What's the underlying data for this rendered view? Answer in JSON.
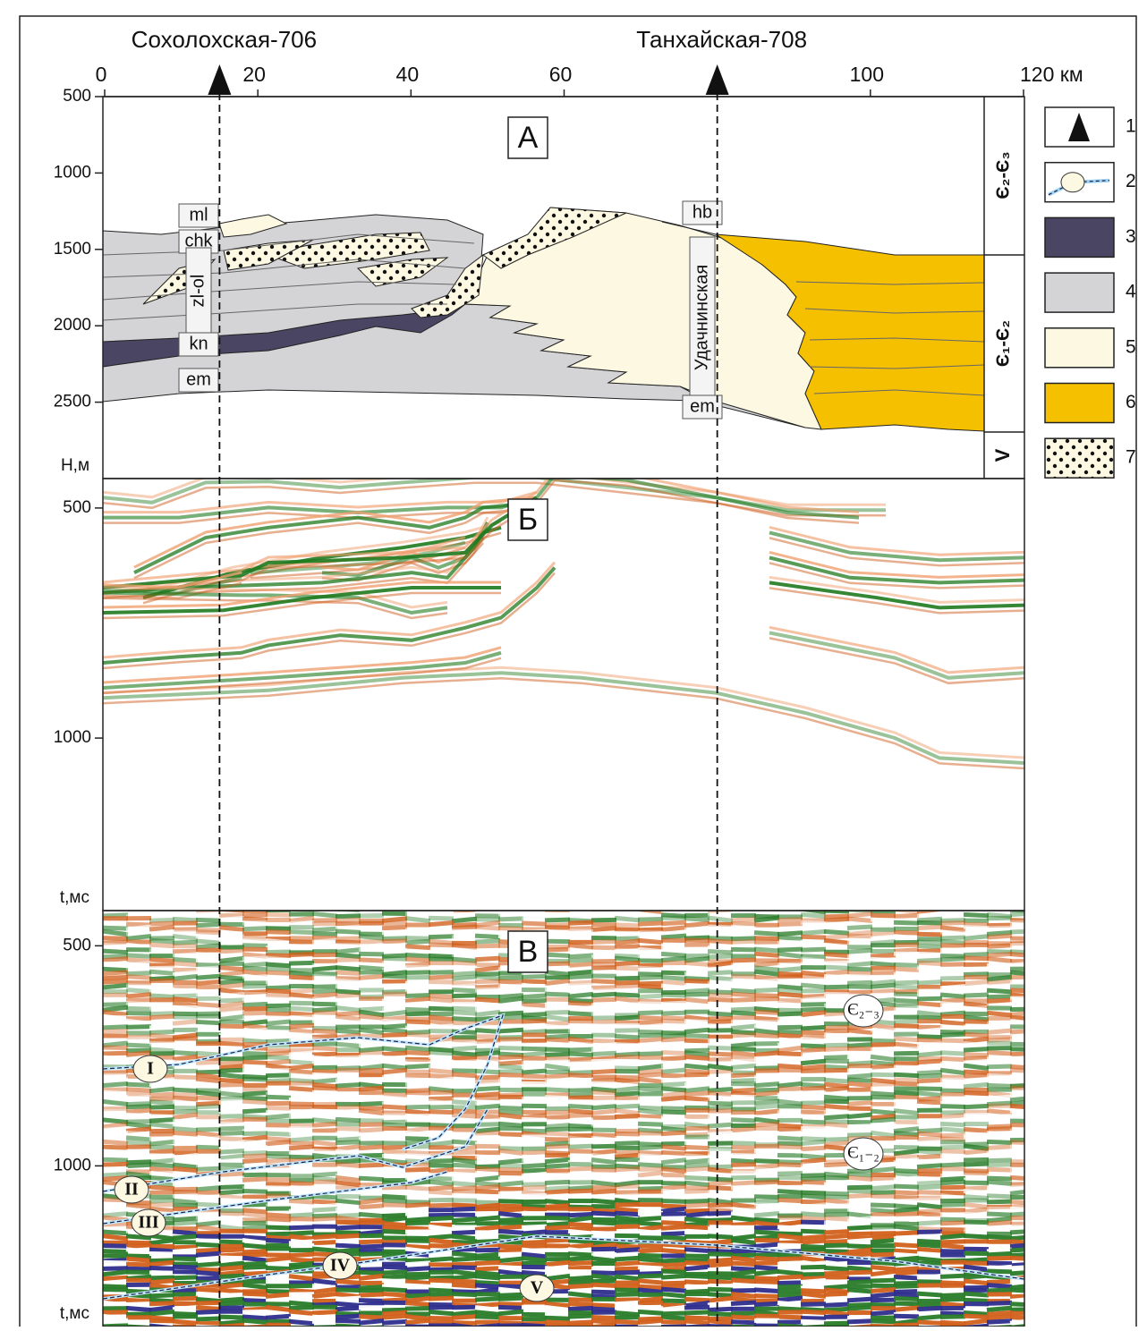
{
  "wells": [
    {
      "name": "Сохолохская-706",
      "km": 15
    },
    {
      "name": "Танхайская-708",
      "km": 80
    }
  ],
  "x_axis": {
    "xlim": [
      0,
      120
    ],
    "xticks": [
      0,
      20,
      40,
      60,
      100,
      {
        "value": 120,
        "label": "120 км"
      }
    ]
  },
  "panels": [
    {
      "label": "А",
      "y_label": "Н,м",
      "ylim": [
        500,
        3000
      ],
      "yticks": [
        500,
        1000,
        1500,
        2000,
        2500
      ],
      "stratigraphy": [
        "Є₂-Є₃",
        "Є₁-Є₂",
        "V"
      ],
      "formations": [
        "ml",
        "chk",
        "zl-ol",
        "kn",
        "em",
        "hb",
        "Удачнинская",
        "em"
      ]
    },
    {
      "label": "Б",
      "y_label": "t,мс",
      "ylim": [
        436,
        1375
      ],
      "yticks": [
        500,
        1000
      ]
    },
    {
      "label": "В",
      "y_label": "t,мс",
      "ylim": [
        420,
        1365
      ],
      "yticks": [
        500,
        1000
      ],
      "units": [
        "Є₂₋₃",
        "Є₁₋₂"
      ],
      "horizons": [
        "I",
        "II",
        "III",
        "IV",
        "V"
      ]
    }
  ],
  "legend": [
    "1",
    "2",
    "3",
    "4",
    "5",
    "6",
    "7"
  ]
}
